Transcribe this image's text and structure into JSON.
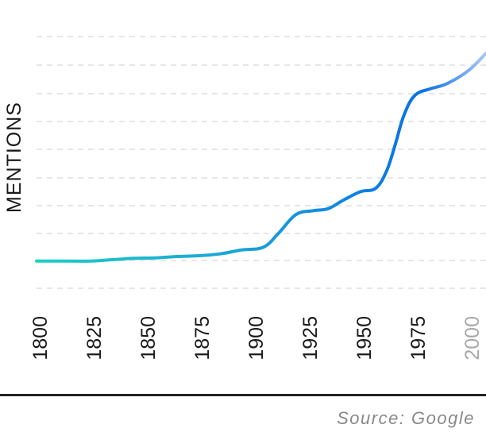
{
  "chart_data": {
    "type": "line",
    "title": "",
    "xlabel": "",
    "ylabel": "MENTIONS",
    "x_ticks": [
      "1800",
      "1825",
      "1850",
      "1875",
      "1900",
      "1925",
      "1950",
      "1975",
      "2000"
    ],
    "x_tick_faded": [
      "2000"
    ],
    "xlim": [
      1800,
      2008
    ],
    "ylim": [
      0,
      9.6
    ],
    "grid": true,
    "legend": "none",
    "colors": {
      "line_start": "#1ecfc4",
      "line_end": "#0a6fe8",
      "line_fade": "#a9c8f8",
      "grid": "#dddddd"
    },
    "series": [
      {
        "x": [
          1800,
          1810,
          1825,
          1835,
          1845,
          1855,
          1865,
          1875,
          1885,
          1895,
          1905,
          1912,
          1920,
          1928,
          1935,
          1942,
          1950,
          1957,
          1962,
          1966,
          1970,
          1975,
          1982,
          1990,
          2000,
          2008
        ],
        "values": [
          1.0,
          1.0,
          1.0,
          1.05,
          1.1,
          1.12,
          1.17,
          1.2,
          1.27,
          1.42,
          1.52,
          2.05,
          2.75,
          2.9,
          2.98,
          3.3,
          3.62,
          3.75,
          4.4,
          5.4,
          6.5,
          7.25,
          7.5,
          7.7,
          8.2,
          8.85
        ]
      }
    ]
  },
  "source": "Source: Google"
}
